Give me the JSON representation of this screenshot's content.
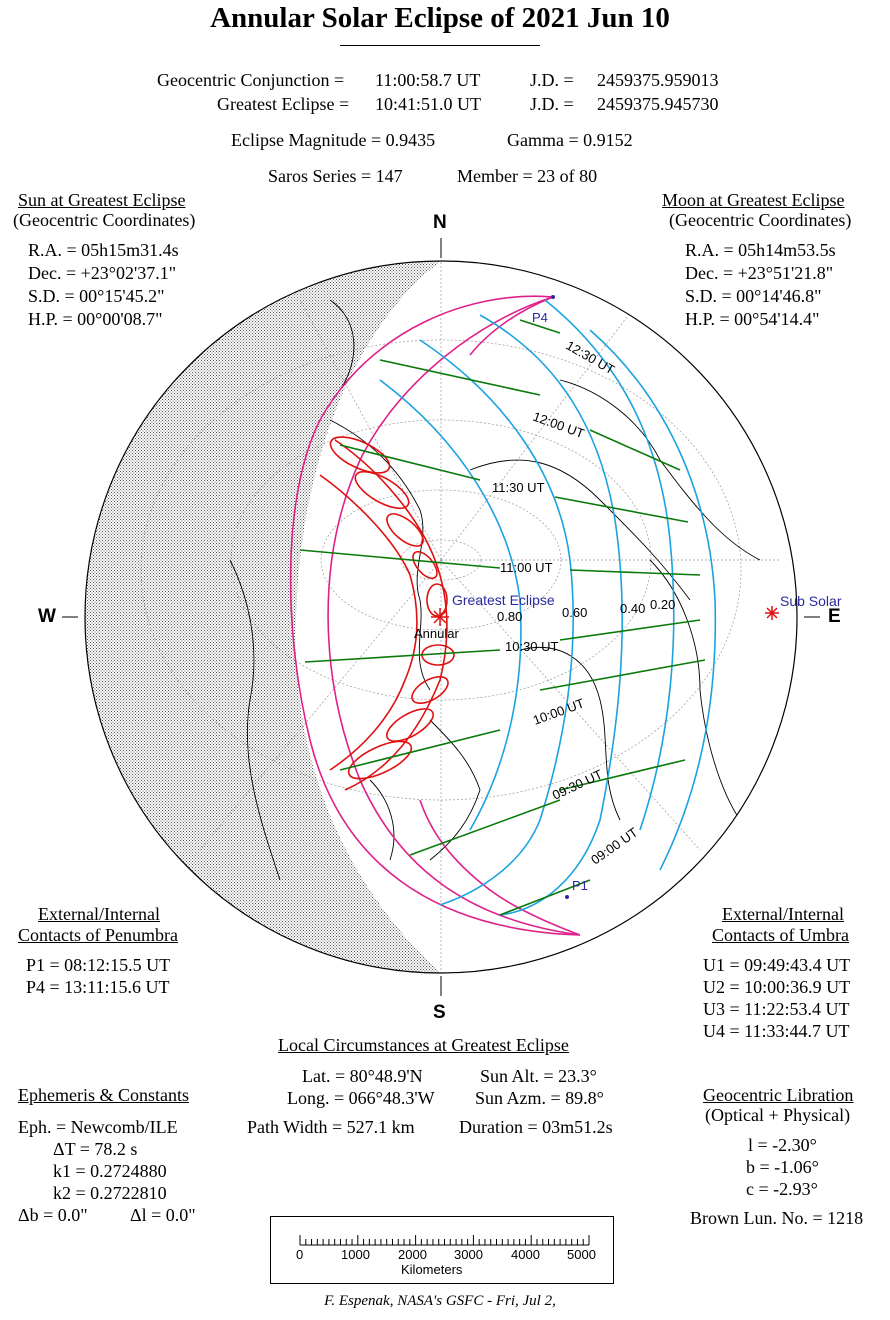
{
  "title": "Annular Solar Eclipse of  2021 Jun 10",
  "conjunction": {
    "label": "Geocentric Conjunction =",
    "time": "11:00:58.7 UT",
    "jd_label": "J.D. =",
    "jd": "2459375.959013"
  },
  "greatest": {
    "label": "Greatest Eclipse =",
    "time": "10:41:51.0 UT",
    "jd_label": "J.D. =",
    "jd": "2459375.945730"
  },
  "magnitude": "Eclipse Magnitude =  0.9435",
  "gamma": "Gamma =  0.9152",
  "saros": "Saros Series = 147",
  "member": "Member = 23 of 80",
  "sun": {
    "title": "Sun at Greatest Eclipse",
    "subtitle": "(Geocentric Coordinates)",
    "ra": "R.A. = 05h15m31.4s",
    "dec": "Dec. = +23°02'37.1\"",
    "sd": "S.D. =  00°15'45.2\"",
    "hp": "H.P. =  00°00'08.7\""
  },
  "moon": {
    "title": "Moon at Greatest Eclipse",
    "subtitle": "(Geocentric Coordinates)",
    "ra": "R.A. = 05h14m53.5s",
    "dec": "Dec. = +23°51'21.8\"",
    "sd": "S.D. =  00°14'46.8\"",
    "hp": "H.P. =  00°54'14.4\""
  },
  "compass": {
    "n": "N",
    "s": "S",
    "w": "W",
    "e": "E"
  },
  "map_labels": {
    "p4": "P4",
    "p1": "P1",
    "t1230": "12:30 UT",
    "t1200": "12:00 UT",
    "t1130": "11:30 UT",
    "t1100": "11:00 UT",
    "t1030": "10:30 UT",
    "t1000": "10:00 UT",
    "t0930": "09:30 UT",
    "t0900": "09:00 UT",
    "greatest": "Greatest Eclipse",
    "annular": "Annular",
    "subsolar": "Sub Solar",
    "m080": "0.80",
    "m060": "0.60",
    "m040": "0.40",
    "m020": "0.20"
  },
  "penumbra": {
    "title1": "External/Internal",
    "title2": "Contacts of Penumbra",
    "p1": "P1 = 08:12:15.5 UT",
    "p4": "P4 = 13:11:15.6 UT"
  },
  "umbra": {
    "title1": "External/Internal",
    "title2": "Contacts of Umbra",
    "u1": "U1 = 09:49:43.4 UT",
    "u2": "U2 = 10:00:36.9 UT",
    "u3": "U3 = 11:22:53.4 UT",
    "u4": "U4 = 11:33:44.7 UT"
  },
  "local": {
    "title": "Local Circumstances at Greatest Eclipse",
    "lat": "Lat. =  80°48.9'N",
    "long": "Long. = 066°48.3'W",
    "alt": "Sun Alt. =   23.3°",
    "azm": "Sun Azm. =   89.8°",
    "width": "Path Width = 527.1 km",
    "duration": "Duration =  03m51.2s"
  },
  "ephemeris": {
    "title": "Ephemeris & Constants",
    "eph": "Eph. = Newcomb/ILE",
    "dt": "ΔT =     78.2 s",
    "k1": "k1 = 0.2724880",
    "k2": "k2 = 0.2722810",
    "db": "Δb =   0.0\"",
    "dl": "Δl =   0.0\""
  },
  "libration": {
    "title": "Geocentric Libration",
    "subtitle": "(Optical + Physical)",
    "l": "l =   -2.30°",
    "b": "b =   -1.06°",
    "c": "c =   -2.93°",
    "brown": "Brown Lun. No. = 1218"
  },
  "scale": {
    "ticks": [
      "0",
      "1000",
      "2000",
      "3000",
      "4000",
      "5000"
    ],
    "unit": "Kilometers"
  },
  "credit": "F. Espenak, NASA's GSFC - Fri, Jul 2,",
  "colors": {
    "penumbra": "#e0208a",
    "umbra": "#e01010",
    "time_lines": "#1aa3e0",
    "mag_lines": "#0a7a0a",
    "label_blue": "#2a2aa0"
  }
}
